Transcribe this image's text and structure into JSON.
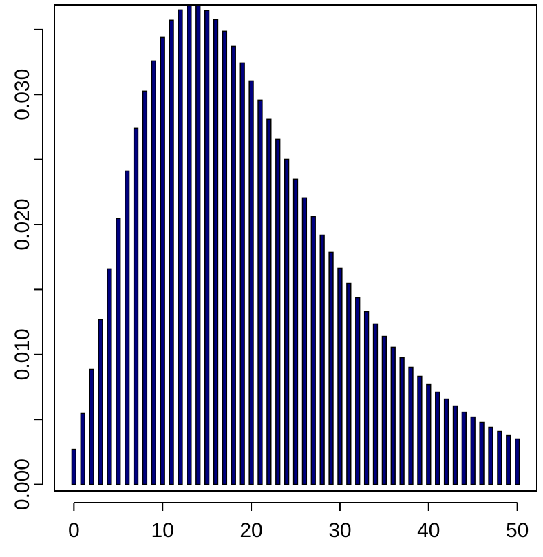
{
  "chart_data": {
    "type": "bar",
    "x": [
      0,
      1,
      2,
      3,
      4,
      5,
      6,
      7,
      8,
      9,
      10,
      11,
      12,
      13,
      14,
      15,
      16,
      17,
      18,
      19,
      20,
      21,
      22,
      23,
      24,
      25,
      26,
      27,
      28,
      29,
      30,
      31,
      32,
      33,
      34,
      35,
      36,
      37,
      38,
      39,
      40,
      41,
      42,
      43,
      44,
      45,
      46,
      47,
      48,
      49,
      50
    ],
    "values": [
      0.0027,
      0.00546,
      0.00885,
      0.01267,
      0.01659,
      0.02046,
      0.02411,
      0.0274,
      0.03026,
      0.03259,
      0.03439,
      0.03572,
      0.03651,
      0.03683,
      0.0369,
      0.03646,
      0.03577,
      0.03487,
      0.0337,
      0.03243,
      0.03105,
      0.02957,
      0.02809,
      0.02655,
      0.02501,
      0.02348,
      0.02205,
      0.02061,
      0.01918,
      0.01786,
      0.01664,
      0.01547,
      0.01436,
      0.0133,
      0.01235,
      0.01139,
      0.01055,
      0.00975,
      0.00901,
      0.00832,
      0.00768,
      0.0071,
      0.00657,
      0.00604,
      0.00556,
      0.00519,
      0.00477,
      0.0044,
      0.00408,
      0.00376,
      0.0035
    ],
    "color": "#00007f",
    "xlim": [
      -2.2,
      52.2
    ],
    "xticks": [
      0,
      10,
      20,
      30,
      40,
      50
    ],
    "ylim": [
      -0.0005,
      0.0369
    ],
    "yticks": [
      {
        "value": 0,
        "label": "0.000"
      },
      {
        "value": 0.01,
        "label": "0.010"
      },
      {
        "value": 0.02,
        "label": "0.020"
      },
      {
        "value": 0.03,
        "label": "0.030"
      }
    ],
    "yminorticks": [
      0.005,
      0.015,
      0.025,
      0.035
    ]
  }
}
